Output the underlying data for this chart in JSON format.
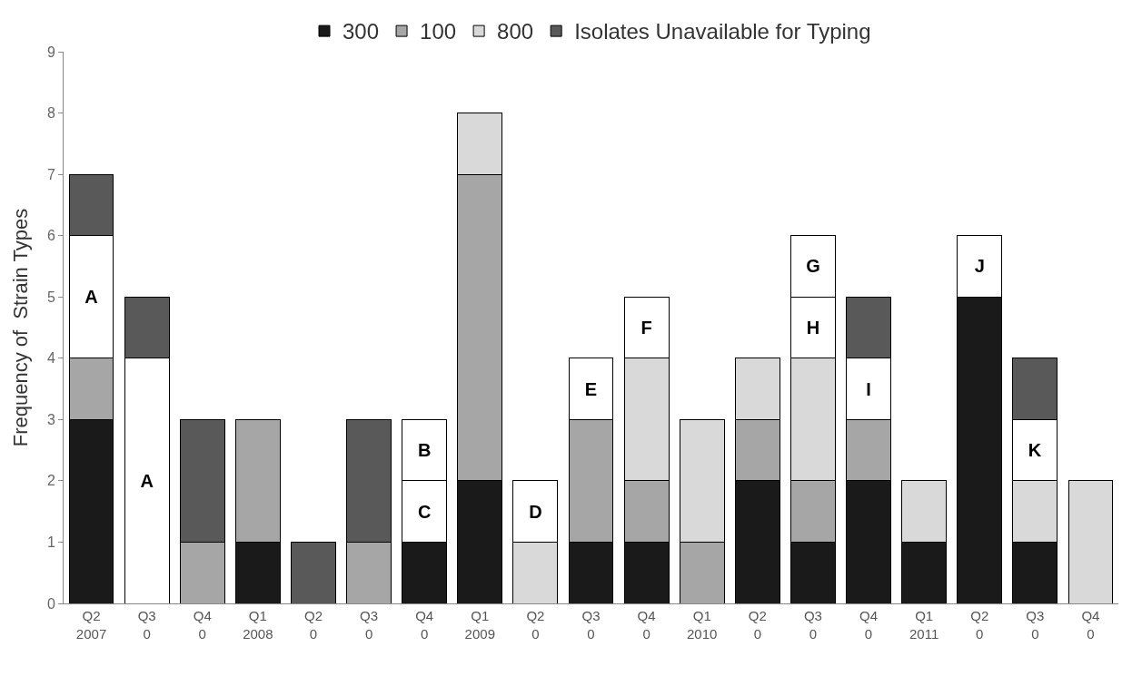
{
  "chart_data": {
    "type": "bar",
    "stacked": true,
    "ylabel": "Frequency of  Strain Types",
    "categories": [
      "Q2\n2007",
      "Q3\n0",
      "Q4\n0",
      "Q1\n2008",
      "Q2\n0",
      "Q3\n0",
      "Q4\n0",
      "Q1\n2009",
      "Q2\n0",
      "Q3\n0",
      "Q4\n0",
      "Q1\n2010",
      "Q2\n0",
      "Q3\n0",
      "Q4\n0",
      "Q1\n2011",
      "Q2\n0",
      "Q3\n0",
      "Q4\n0"
    ],
    "series": [
      {
        "name": "300",
        "color": "#1a1a1a",
        "values": [
          3,
          null,
          null,
          1,
          null,
          null,
          1,
          2,
          null,
          1,
          1,
          null,
          2,
          1,
          2,
          1,
          5,
          1,
          null
        ]
      },
      {
        "name": "100",
        "color": "#a6a6a6",
        "values": [
          1,
          null,
          1,
          2,
          null,
          1,
          null,
          5,
          null,
          2,
          1,
          1,
          1,
          1,
          1,
          null,
          null,
          null,
          null
        ]
      },
      {
        "name": "800",
        "color": "#d9d9d9",
        "values": [
          null,
          null,
          null,
          null,
          null,
          null,
          null,
          1,
          1,
          null,
          2,
          2,
          1,
          2,
          null,
          1,
          null,
          1,
          2
        ]
      },
      {
        "color": "#ffffff",
        "values": [
          2,
          4,
          null,
          null,
          null,
          null,
          1,
          null,
          1,
          1,
          1,
          null,
          null,
          1,
          1,
          null,
          1,
          1,
          null
        ],
        "value_labels": [
          "A",
          "A",
          null,
          null,
          null,
          null,
          "C",
          null,
          "D",
          "E",
          "F",
          null,
          null,
          "H",
          "I",
          null,
          "J",
          "K",
          null
        ]
      },
      {
        "color": "#ffffff",
        "values": [
          null,
          null,
          null,
          null,
          null,
          null,
          1,
          null,
          null,
          null,
          null,
          null,
          null,
          1,
          null,
          null,
          null,
          null,
          null
        ],
        "value_labels": [
          null,
          null,
          null,
          null,
          null,
          null,
          "B",
          null,
          null,
          null,
          null,
          null,
          null,
          "G",
          null,
          null,
          null,
          null,
          null
        ]
      },
      {
        "name": "Isolates Unavailable for Typing",
        "color": "#595959",
        "values": [
          1,
          1,
          2,
          null,
          1,
          2,
          null,
          null,
          null,
          null,
          null,
          null,
          null,
          null,
          1,
          null,
          null,
          1,
          null
        ]
      }
    ],
    "ylim": [
      0,
      9
    ],
    "yticks": [
      0,
      1,
      2,
      3,
      4,
      5,
      6,
      7,
      8,
      9
    ],
    "legend": "top"
  }
}
